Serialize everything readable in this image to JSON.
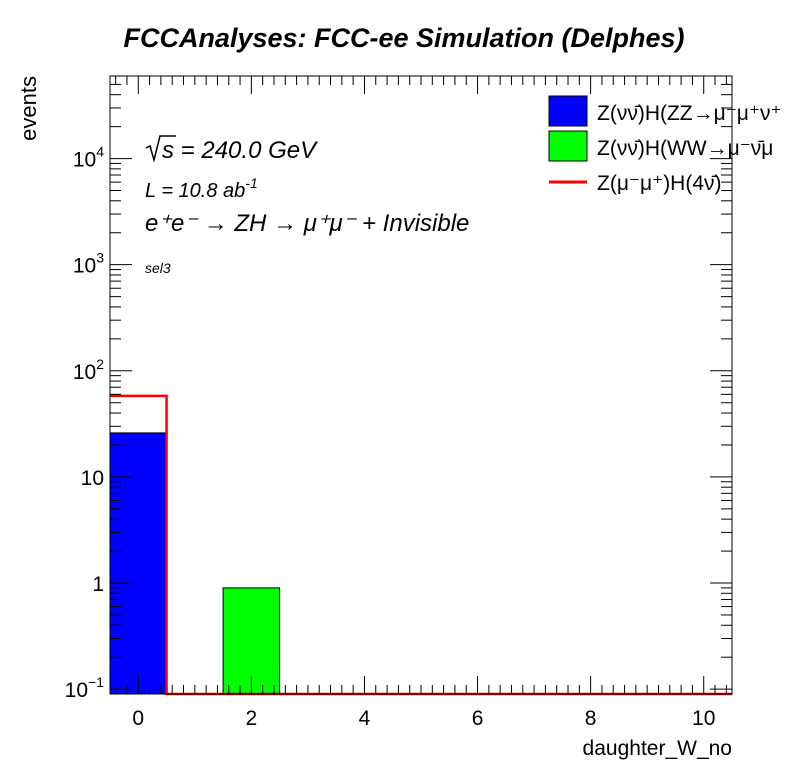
{
  "chart_data": {
    "type": "bar",
    "title": "FCCAnalyses: FCC-ee Simulation (Delphes)",
    "xlabel": "daughter_W_no",
    "ylabel": "events",
    "log_y": true,
    "xlim": [
      -0.5,
      10.5
    ],
    "ylim": [
      0.09,
      60000
    ],
    "x_ticks": [
      {
        "v": 0,
        "label": "0"
      },
      {
        "v": 2,
        "label": "2"
      },
      {
        "v": 4,
        "label": "4"
      },
      {
        "v": 6,
        "label": "6"
      },
      {
        "v": 8,
        "label": "8"
      },
      {
        "v": 10,
        "label": "10"
      }
    ],
    "y_ticks": [
      {
        "v": 0.1,
        "base": "10",
        "exp": "−1"
      },
      {
        "v": 1,
        "base": "1",
        "exp": ""
      },
      {
        "v": 10,
        "base": "10",
        "exp": ""
      },
      {
        "v": 100,
        "base": "10",
        "exp": "2"
      },
      {
        "v": 1000,
        "base": "10",
        "exp": "3"
      },
      {
        "v": 10000,
        "base": "10",
        "exp": "4"
      }
    ],
    "series": [
      {
        "name": "Z(νν̄)H(ZZ→μ⁻μ⁺ν⁺",
        "kind": "filled",
        "color": "#0000ff",
        "bins": [
          {
            "x0": -0.5,
            "x1": 0.5,
            "value": 26
          }
        ]
      },
      {
        "name": "Z(νν̄)H(WW→μ⁻ν̄μ",
        "kind": "filled",
        "color": "#00ff00",
        "bins": [
          {
            "x0": 1.5,
            "x1": 2.5,
            "value": 0.9
          }
        ]
      },
      {
        "name": "Z(μ⁻μ⁺)H(4ν̄)",
        "kind": "line",
        "color": "#ff0000",
        "bins": [
          {
            "x0": -0.5,
            "x1": 0.5,
            "value": 58
          }
        ]
      }
    ],
    "annotations": {
      "sqrt_s": "s = 240.0 GeV",
      "lumi_main": "L = 10.8 ab",
      "lumi_exp": "-1",
      "process": "e⁺e⁻ → ZH → μ⁺μ⁻ + Invisible",
      "selection": "sel3"
    },
    "legend_position": "top-right"
  }
}
